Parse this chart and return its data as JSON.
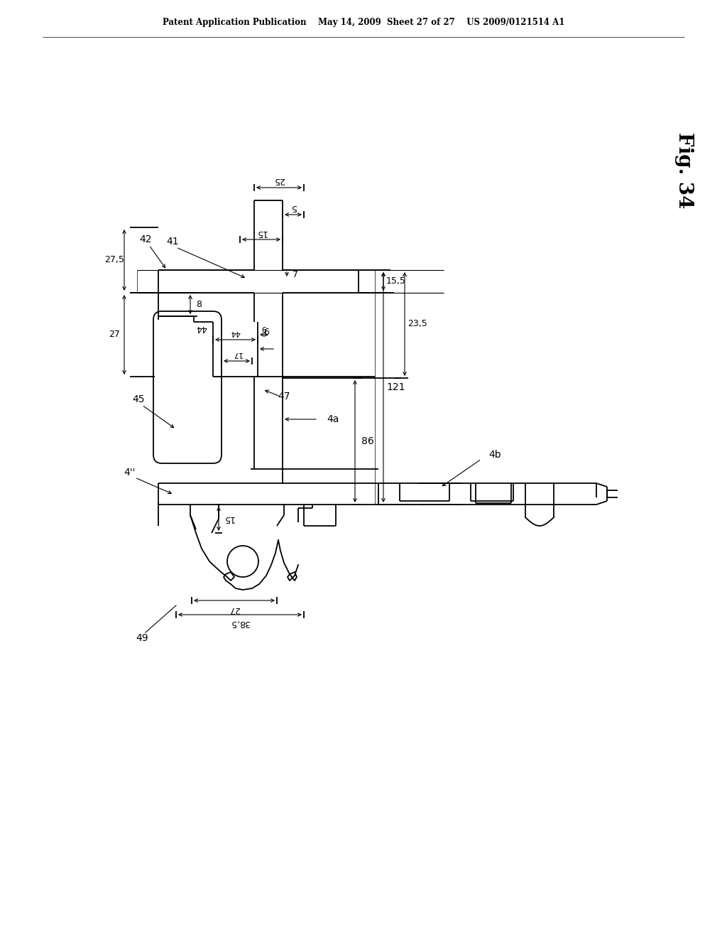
{
  "header": "Patent Application Publication    May 14, 2009  Sheet 27 of 27    US 2009/0121514 A1",
  "fig_label": "Fig. 34",
  "background_color": "#ffffff",
  "line_color": "#000000",
  "lw": 1.3
}
